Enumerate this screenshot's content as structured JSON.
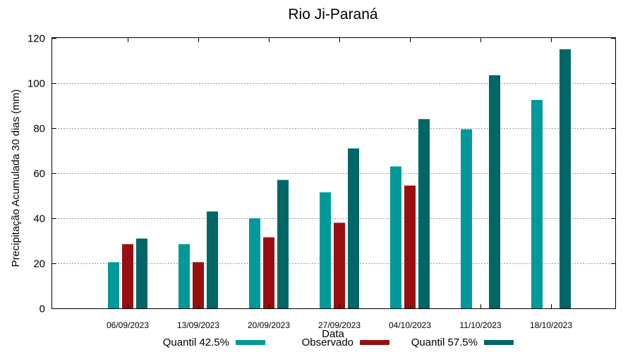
{
  "chart_data": {
    "type": "bar",
    "title": "Rio Ji-Paraná",
    "xlabel": "Data",
    "ylabel": "Precipitação Acumulada 30 dias (mm)",
    "ylim": [
      0,
      120
    ],
    "yticks": [
      0,
      20,
      40,
      60,
      80,
      100,
      120
    ],
    "grid": true,
    "legend_position": "bottom",
    "categories": [
      "06/09/2023",
      "13/09/2023",
      "20/09/2023",
      "27/09/2023",
      "04/10/2023",
      "11/10/2023",
      "18/10/2023"
    ],
    "series": [
      {
        "name": "Quantil 42.5%",
        "color": "#009999",
        "values": [
          20.5,
          28.5,
          40,
          51.5,
          63,
          79.5,
          92.5
        ]
      },
      {
        "name": "Observado",
        "color": "#990f0f",
        "values": [
          28.5,
          20.5,
          31.5,
          38,
          54.5,
          null,
          null
        ]
      },
      {
        "name": "Quantil 57.5%",
        "color": "#006666",
        "values": [
          31,
          43,
          57,
          71,
          84,
          103.5,
          115
        ]
      }
    ]
  }
}
